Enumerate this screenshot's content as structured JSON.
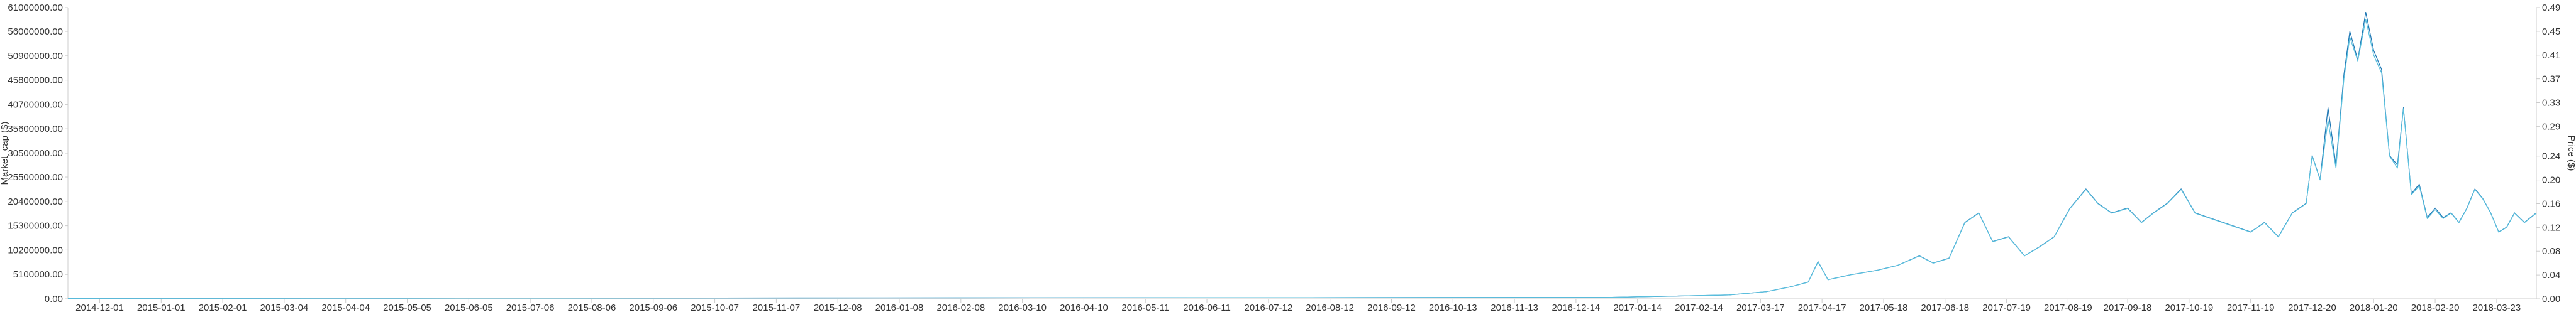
{
  "chart_data": {
    "type": "line",
    "x_axis": {
      "type": "date",
      "range": [
        "2014-11-15",
        "2018-04-12"
      ],
      "tick_labels": [
        "2014-12-01",
        "2015-01-01",
        "2015-02-01",
        "2015-03-04",
        "2015-04-04",
        "2015-05-05",
        "2015-06-05",
        "2015-07-06",
        "2015-08-06",
        "2015-09-06",
        "2015-10-07",
        "2015-11-07",
        "2015-12-08",
        "2016-01-08",
        "2016-02-08",
        "2016-03-10",
        "2016-04-10",
        "2016-05-11",
        "2016-06-11",
        "2016-07-12",
        "2016-08-12",
        "2016-09-12",
        "2016-10-13",
        "2016-11-13",
        "2016-12-14",
        "2017-01-14",
        "2017-02-14",
        "2017-03-17",
        "2017-04-17",
        "2017-05-18",
        "2017-06-18",
        "2017-07-19",
        "2017-08-19",
        "2017-09-18",
        "2017-10-19",
        "2017-11-19",
        "2017-12-20",
        "2018-01-20",
        "2018-02-20",
        "2018-03-23"
      ]
    },
    "y_left": {
      "label": "Market_cap ($)",
      "range": [
        0,
        61000000
      ],
      "tick_labels": [
        "0.00",
        "5100000.00",
        "10200000.00",
        "15300000.00",
        "20400000.00",
        "25500000.00",
        "30500000.00",
        "35600000.00",
        "40700000.00",
        "45800000.00",
        "50900000.00",
        "56000000.00",
        "61000000.00"
      ],
      "tick_values": [
        0,
        5100000,
        10200000,
        15300000,
        20400000,
        25500000,
        30500000,
        35600000,
        40700000,
        45800000,
        50900000,
        56000000,
        61000000
      ]
    },
    "y_right": {
      "label": "Price ($)",
      "range": [
        0,
        0.49
      ],
      "tick_labels": [
        "0.00",
        "0.04",
        "0.08",
        "0.12",
        "0.16",
        "0.20",
        "0.24",
        "0.29",
        "0.33",
        "0.37",
        "0.41",
        "0.45",
        "0.49"
      ],
      "tick_values": [
        0,
        0.04,
        0.08,
        0.12,
        0.16,
        0.2,
        0.24,
        0.29,
        0.33,
        0.37,
        0.41,
        0.45,
        0.49
      ]
    },
    "grid": false,
    "colors": {
      "market_cap": "#1f77b4",
      "price": "#5bc0de"
    },
    "series": [
      {
        "axis": "left",
        "x": [
          "2014-11-15",
          "2015-06-01",
          "2016-01-01",
          "2016-08-01",
          "2017-01-01",
          "2017-03-01",
          "2017-03-20",
          "2017-04-01",
          "2017-04-10",
          "2017-04-15",
          "2017-04-20",
          "2017-05-01",
          "2017-05-15",
          "2017-05-25",
          "2017-06-05",
          "2017-06-12",
          "2017-06-20",
          "2017-06-28",
          "2017-07-05",
          "2017-07-12",
          "2017-07-20",
          "2017-07-28",
          "2017-08-05",
          "2017-08-12",
          "2017-08-20",
          "2017-08-28",
          "2017-09-03",
          "2017-09-10",
          "2017-09-18",
          "2017-09-25",
          "2017-10-01",
          "2017-10-08",
          "2017-10-15",
          "2017-10-22",
          "2017-10-29",
          "2017-11-05",
          "2017-11-12",
          "2017-11-19",
          "2017-11-26",
          "2017-12-03",
          "2017-12-10",
          "2017-12-17",
          "2017-12-20",
          "2017-12-24",
          "2017-12-28",
          "2018-01-01",
          "2018-01-05",
          "2018-01-08",
          "2018-01-12",
          "2018-01-16",
          "2018-01-20",
          "2018-01-24",
          "2018-01-28",
          "2018-02-01",
          "2018-02-04",
          "2018-02-08",
          "2018-02-12",
          "2018-02-16",
          "2018-02-20",
          "2018-02-24",
          "2018-02-28",
          "2018-03-04",
          "2018-03-08",
          "2018-03-12",
          "2018-03-16",
          "2018-03-20",
          "2018-03-24",
          "2018-03-28",
          "2018-04-01",
          "2018-04-06",
          "2018-04-12"
        ],
        "values": [
          100000,
          150000,
          200000,
          250000,
          300000,
          800000,
          1500000,
          2500000,
          3500000,
          7800000,
          4000000,
          5000000,
          6000000,
          7000000,
          9000000,
          7500000,
          8500000,
          16000000,
          18000000,
          12000000,
          13000000,
          9000000,
          11000000,
          13000000,
          19000000,
          23000000,
          20000000,
          18000000,
          19000000,
          16000000,
          18000000,
          20000000,
          23000000,
          18000000,
          17000000,
          16000000,
          15000000,
          14000000,
          16000000,
          13000000,
          18000000,
          20000000,
          30000000,
          25000000,
          40000000,
          28000000,
          47000000,
          56000000,
          50000000,
          60000000,
          52000000,
          48000000,
          30000000,
          28000000,
          40000000,
          22000000,
          24000000,
          17000000,
          19000000,
          17000000,
          18000000,
          16000000,
          19000000,
          23000000,
          21000000,
          18000000,
          14000000,
          15000000,
          18000000,
          16000000,
          18000000
        ]
      },
      {
        "axis": "right",
        "x": [
          "2014-11-15",
          "2015-06-01",
          "2016-01-01",
          "2016-08-01",
          "2017-01-01",
          "2017-03-01",
          "2017-03-20",
          "2017-04-01",
          "2017-04-10",
          "2017-04-15",
          "2017-04-20",
          "2017-05-01",
          "2017-05-15",
          "2017-05-25",
          "2017-06-05",
          "2017-06-12",
          "2017-06-20",
          "2017-06-28",
          "2017-07-05",
          "2017-07-12",
          "2017-07-20",
          "2017-07-28",
          "2017-08-05",
          "2017-08-12",
          "2017-08-20",
          "2017-08-28",
          "2017-09-03",
          "2017-09-10",
          "2017-09-18",
          "2017-09-25",
          "2017-10-01",
          "2017-10-08",
          "2017-10-15",
          "2017-10-22",
          "2017-10-29",
          "2017-11-05",
          "2017-11-12",
          "2017-11-19",
          "2017-11-26",
          "2017-12-03",
          "2017-12-10",
          "2017-12-17",
          "2017-12-20",
          "2017-12-24",
          "2017-12-28",
          "2018-01-01",
          "2018-01-05",
          "2018-01-08",
          "2018-01-12",
          "2018-01-16",
          "2018-01-20",
          "2018-01-24",
          "2018-01-28",
          "2018-02-01",
          "2018-02-04",
          "2018-02-08",
          "2018-02-12",
          "2018-02-16",
          "2018-02-20",
          "2018-02-24",
          "2018-02-28",
          "2018-03-04",
          "2018-03-08",
          "2018-03-12",
          "2018-03-16",
          "2018-03-20",
          "2018-03-24",
          "2018-03-28",
          "2018-04-01",
          "2018-04-06",
          "2018-04-12"
        ],
        "values": [
          0.0008,
          0.0012,
          0.0016,
          0.002,
          0.0024,
          0.0065,
          0.012,
          0.02,
          0.028,
          0.062,
          0.032,
          0.04,
          0.048,
          0.056,
          0.072,
          0.06,
          0.068,
          0.128,
          0.144,
          0.096,
          0.104,
          0.072,
          0.088,
          0.104,
          0.152,
          0.184,
          0.16,
          0.144,
          0.152,
          0.128,
          0.144,
          0.16,
          0.184,
          0.144,
          0.136,
          0.128,
          0.12,
          0.112,
          0.128,
          0.104,
          0.144,
          0.16,
          0.24,
          0.2,
          0.3,
          0.22,
          0.37,
          0.44,
          0.4,
          0.47,
          0.41,
          0.38,
          0.24,
          0.22,
          0.32,
          0.175,
          0.19,
          0.135,
          0.15,
          0.135,
          0.144,
          0.128,
          0.152,
          0.184,
          0.168,
          0.144,
          0.112,
          0.12,
          0.144,
          0.128,
          0.144
        ]
      }
    ]
  }
}
